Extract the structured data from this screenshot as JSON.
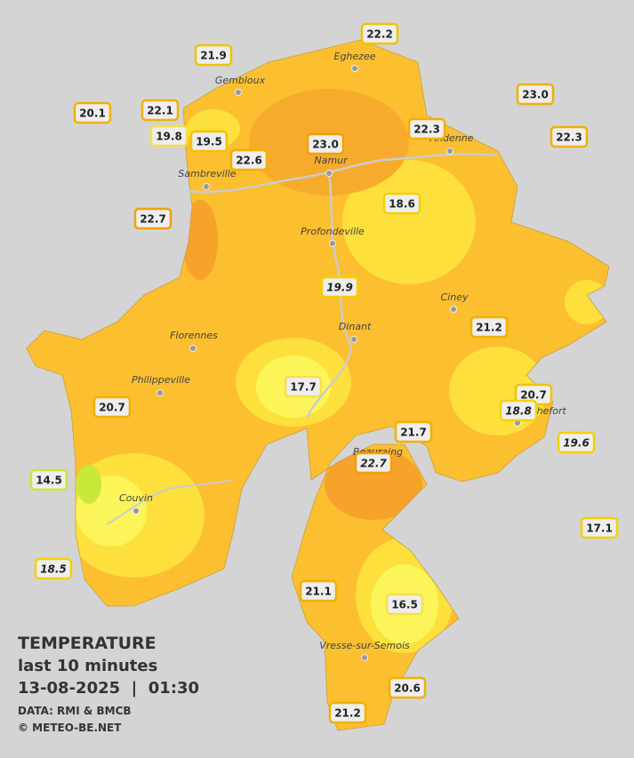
{
  "title": {
    "heading": "TEMPERATURE",
    "subtitle": "last 10 minutes",
    "datetime": "13-08-2025  |  01:30",
    "source": "DATA: RMI & BMCB",
    "copyright": "© METEO-BE.NET"
  },
  "towns": [
    "Eghezee",
    "Gembloux",
    "Andenne",
    "Namur",
    "Sambreville",
    "Profondeville",
    "Ciney",
    "Dinant",
    "Florennes",
    "Philippeville",
    "Rochefort",
    "Beauraing",
    "Couvin",
    "Vresse-sur-Semois"
  ],
  "stations": [
    {
      "value": "22.2",
      "italic": false
    },
    {
      "value": "21.9",
      "italic": false
    },
    {
      "value": "20.1",
      "italic": false
    },
    {
      "value": "22.1",
      "italic": false
    },
    {
      "value": "19.8",
      "italic": false
    },
    {
      "value": "19.5",
      "italic": false
    },
    {
      "value": "23.0",
      "italic": false
    },
    {
      "value": "22.3",
      "italic": false
    },
    {
      "value": "22.3",
      "italic": false
    },
    {
      "value": "23.0",
      "italic": false
    },
    {
      "value": "22.6",
      "italic": false
    },
    {
      "value": "18.6",
      "italic": false
    },
    {
      "value": "22.7",
      "italic": false
    },
    {
      "value": "19.9",
      "italic": true
    },
    {
      "value": "21.2",
      "italic": false
    },
    {
      "value": "17.7",
      "italic": false
    },
    {
      "value": "20.7",
      "italic": false
    },
    {
      "value": "18.8",
      "italic": true
    },
    {
      "value": "20.7",
      "italic": false
    },
    {
      "value": "21.7",
      "italic": false
    },
    {
      "value": "22.7",
      "italic": true
    },
    {
      "value": "19.6",
      "italic": true
    },
    {
      "value": "14.5",
      "italic": false
    },
    {
      "value": "17.1",
      "italic": false
    },
    {
      "value": "18.5",
      "italic": true
    },
    {
      "value": "21.1",
      "italic": false
    },
    {
      "value": "16.5",
      "italic": false
    },
    {
      "value": "20.6",
      "italic": false
    },
    {
      "value": "21.2",
      "italic": false
    }
  ]
}
